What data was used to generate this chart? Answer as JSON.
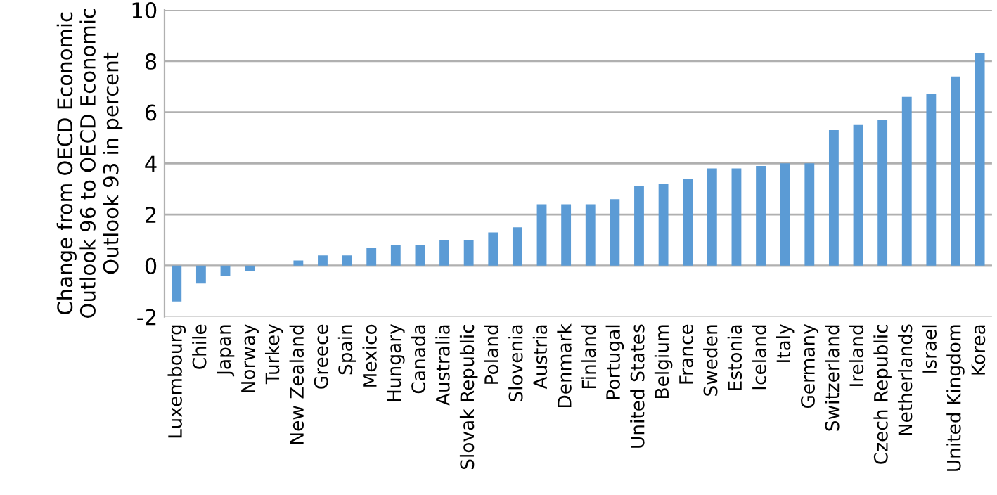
{
  "chart_data": {
    "type": "bar",
    "ylabel": "Change from OECD Economic Outlook 96 to OECD Economic Outlook 93 in percent",
    "categories": [
      "Luxembourg",
      "Chile",
      "Japan",
      "Norway",
      "Turkey",
      "New Zealand",
      "Greece",
      "Spain",
      "Mexico",
      "Hungary",
      "Canada",
      "Australia",
      "Slovak Republic",
      "Poland",
      "Slovenia",
      "Austria",
      "Denmark",
      "Finland",
      "Portugal",
      "United States",
      "Belgium",
      "France",
      "Sweden",
      "Estonia",
      "Iceland",
      "Italy",
      "Germany",
      "Switzerland",
      "Ireland",
      "Czech Republic",
      "Netherlands",
      "Israel",
      "United Kingdom",
      "Korea"
    ],
    "values": [
      -1.4,
      -0.7,
      -0.4,
      -0.2,
      0.0,
      0.2,
      0.4,
      0.4,
      0.7,
      0.8,
      0.8,
      1.0,
      1.0,
      1.3,
      1.5,
      2.4,
      2.4,
      2.4,
      2.6,
      3.1,
      3.2,
      3.4,
      3.8,
      3.8,
      3.9,
      4.0,
      4.0,
      5.3,
      5.5,
      5.7,
      6.6,
      6.7,
      7.4,
      8.3
    ],
    "color": "#5b9bd5",
    "ylim": [
      -2,
      10
    ],
    "yticks": [
      -2,
      0,
      2,
      4,
      6,
      8,
      10
    ],
    "grid": "y"
  }
}
